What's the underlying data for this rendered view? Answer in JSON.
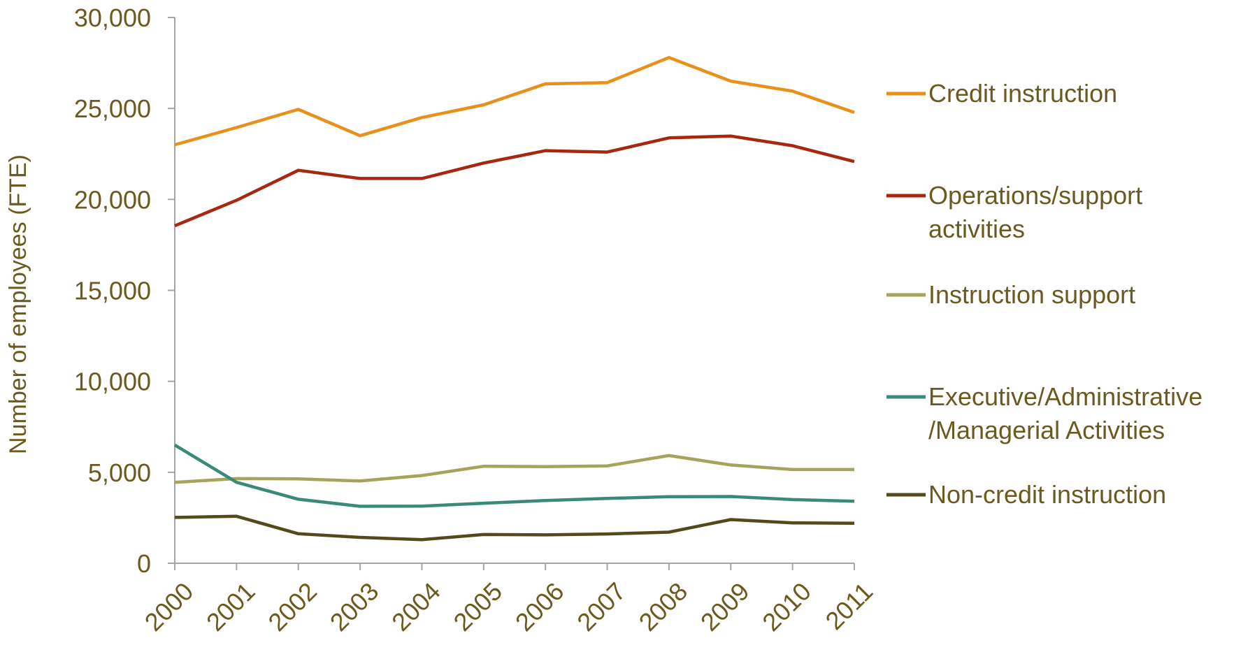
{
  "chart_data": {
    "type": "line",
    "title": "",
    "xlabel": "",
    "ylabel": "Number of employees (FTE)",
    "ylim": [
      0,
      30000
    ],
    "yticks": [
      "0",
      "5,000",
      "10,000",
      "15,000",
      "20,000",
      "25,000",
      "30,000"
    ],
    "ytick_values": [
      0,
      5000,
      10000,
      15000,
      20000,
      25000,
      30000
    ],
    "categories": [
      "2000",
      "2001",
      "2002",
      "2003",
      "2004",
      "2005",
      "2006",
      "2007",
      "2008",
      "2009",
      "2010",
      "2011"
    ],
    "grid": false,
    "legend_position": "right",
    "series": [
      {
        "name": "Credit instruction",
        "legend_lines": [
          "Credit instruction"
        ],
        "color": "#e8901a",
        "values": [
          23000,
          23950,
          24950,
          23500,
          24500,
          25200,
          26350,
          26420,
          27800,
          26500,
          25950,
          24780
        ]
      },
      {
        "name": "Operations/support activities",
        "legend_lines": [
          "Operations/support",
          "activities"
        ],
        "color": "#a8280f",
        "values": [
          18550,
          19950,
          21600,
          21150,
          21150,
          22000,
          22680,
          22600,
          23380,
          23480,
          22950,
          22080
        ]
      },
      {
        "name": "Instruction support",
        "legend_lines": [
          "Instruction support"
        ],
        "color": "#a6a45a",
        "values": [
          4450,
          4650,
          4640,
          4520,
          4820,
          5330,
          5310,
          5350,
          5920,
          5400,
          5150,
          5150
        ]
      },
      {
        "name": "Executive/Administrative/Managerial Activities",
        "legend_lines": [
          "Executive/Administrative",
          "/Managerial Activities"
        ],
        "color": "#3a8a7a",
        "values": [
          6500,
          4450,
          3520,
          3130,
          3140,
          3300,
          3450,
          3560,
          3660,
          3670,
          3500,
          3410
        ]
      },
      {
        "name": "Non-credit instruction",
        "legend_lines": [
          "Non-credit instruction"
        ],
        "color": "#54491a",
        "values": [
          2520,
          2580,
          1620,
          1420,
          1300,
          1580,
          1560,
          1610,
          1710,
          2400,
          2220,
          2200
        ]
      }
    ]
  }
}
